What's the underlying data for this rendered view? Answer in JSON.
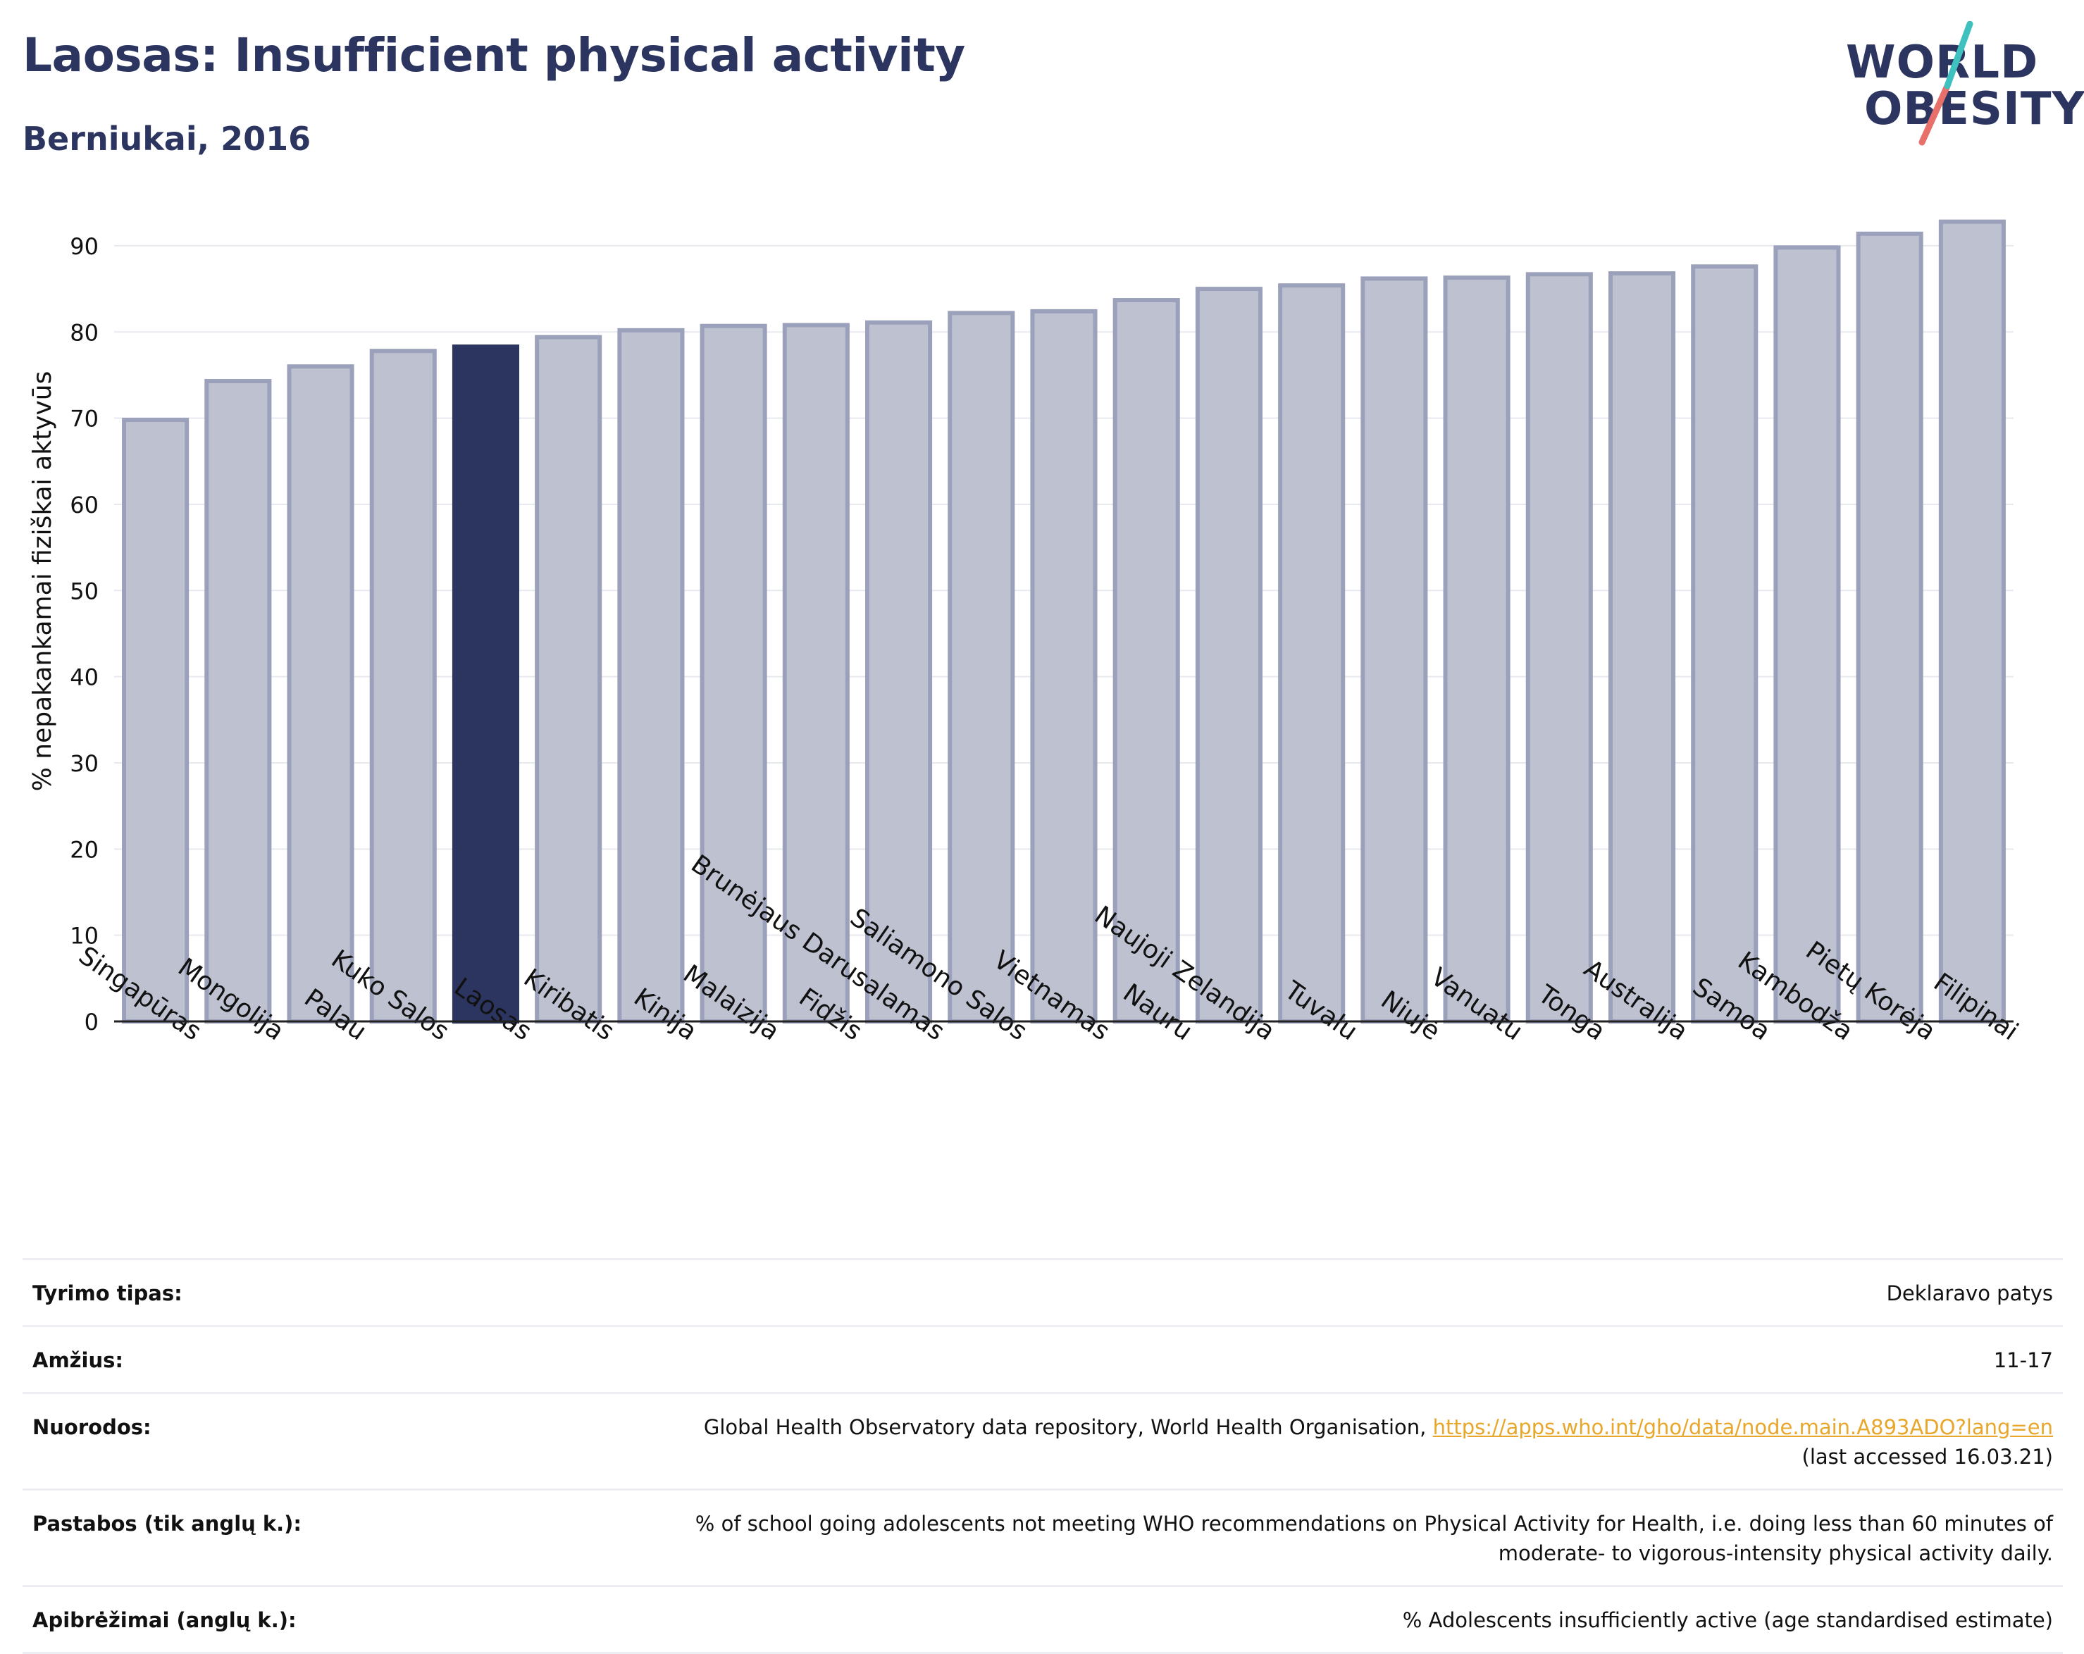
{
  "header": {
    "title": "Laosas: Insufficient physical activity",
    "subtitle": "Berniukai, 2016"
  },
  "logo": {
    "line1": "WORLD",
    "line2": "OBESITY"
  },
  "colors": {
    "bar": "#bec2d0",
    "bar_border": "#9ba1ba",
    "highlight": "#2b3560",
    "title": "#2b3560",
    "link": "#e8a72a",
    "logo_teal": "#3fc1c0",
    "logo_coral": "#e8706a"
  },
  "chart_data": {
    "type": "bar",
    "ylabel": "% nepakankamai fiziškai aktyvūs",
    "xlabel": "",
    "ylim": [
      0,
      94
    ],
    "yticks": [
      0,
      10,
      20,
      30,
      40,
      50,
      60,
      70,
      80,
      90
    ],
    "grid": true,
    "highlight": "Laosas",
    "categories": [
      "Singapūras",
      "Mongolija",
      "Palau",
      "Kuko Salos",
      "Laosas",
      "Kiribatis",
      "Kinija",
      "Malaizija",
      "Fidžis",
      "Brunėjaus Darusalamas",
      "Saliamono Salos",
      "Vietnamas",
      "Nauru",
      "Naujoji Zelandija",
      "Tuvalu",
      "Niujė",
      "Vanuatu",
      "Tonga",
      "Australija",
      "Samoa",
      "Kambodža",
      "Pietų Korėja",
      "Filipinai"
    ],
    "values": [
      69.8,
      74.3,
      76.0,
      77.8,
      78.3,
      79.4,
      80.2,
      80.7,
      80.8,
      81.1,
      82.2,
      82.4,
      83.7,
      85.0,
      85.4,
      86.2,
      86.3,
      86.7,
      86.8,
      87.6,
      89.8,
      91.4,
      92.8
    ]
  },
  "info": [
    {
      "key": "Tyrimo tipas:",
      "value": "Deklaravo patys"
    },
    {
      "key": "Amžius:",
      "value": "11-17"
    },
    {
      "key": "Nuorodos:",
      "value": "Global Health Observatory data repository, World Health Organisation, ",
      "link": "https://apps.who.int/gho/data/node.main.A893ADO?lang=en",
      "value2": "(last accessed 16.03.21)"
    },
    {
      "key": "Pastabos (tik anglų k.):",
      "value": "% of school going adolescents not meeting WHO recommendations on Physical Activity for Health, i.e. doing less than 60 minutes of",
      "value2": "moderate- to vigorous-intensity physical activity daily."
    },
    {
      "key": "Apibrėžimai (anglų k.):",
      "value": "% Adolescents insufficiently active (age standardised estimate)"
    }
  ]
}
